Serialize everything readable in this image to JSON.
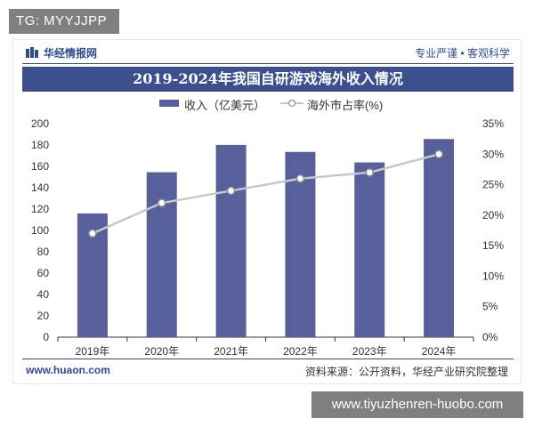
{
  "overlay": {
    "top_badge": "TG: MYYJJPP",
    "bottom_badge": "www.tiyuzhenren-huobo.com"
  },
  "brand": {
    "name": "华经情报网",
    "slogan": "专业严谨 • 客观科学",
    "color": "#2e4d8f"
  },
  "footer": {
    "website": "www.huaon.com",
    "source": "资料来源：公开资料，华经产业研究院整理"
  },
  "chart_data": {
    "type": "bar",
    "title": "2019-2024年我国自研游戏海外收入情况",
    "categories": [
      "2019年",
      "2020年",
      "2021年",
      "2022年",
      "2023年",
      "2024年"
    ],
    "series": [
      {
        "name": "收入（亿美元）",
        "type": "bar",
        "axis": "left",
        "color": "#57609a",
        "values": [
          115.9,
          154.5,
          180.1,
          173.5,
          163.7,
          185.6
        ]
      },
      {
        "name": "海外市占率(%)",
        "type": "line",
        "axis": "right",
        "color": "#c8c8c8",
        "values": [
          17.0,
          22.0,
          24.0,
          26.0,
          27.0,
          30.0
        ]
      }
    ],
    "ylim": [
      0,
      200
    ],
    "yticks": [
      0,
      20,
      40,
      60,
      80,
      100,
      120,
      140,
      160,
      180,
      200
    ],
    "y2lim": [
      0,
      35
    ],
    "y2ticks": [
      "0%",
      "5%",
      "10%",
      "15%",
      "20%",
      "25%",
      "30%",
      "35%"
    ],
    "grid": false,
    "legend": "top-center"
  }
}
